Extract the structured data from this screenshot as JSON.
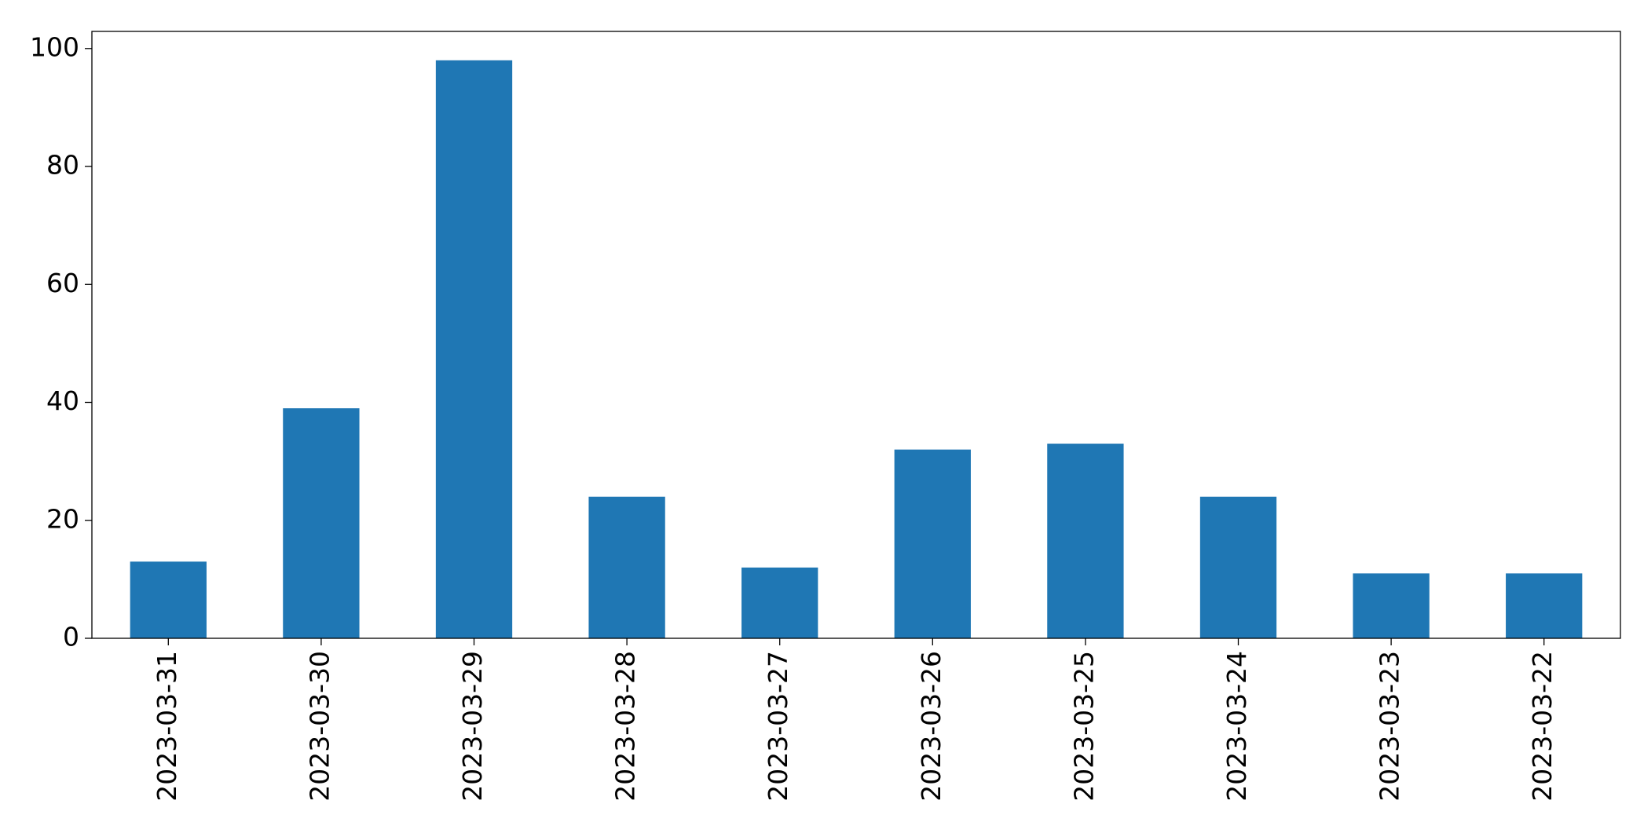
{
  "chart_data": {
    "type": "bar",
    "categories": [
      "2023-03-31",
      "2023-03-30",
      "2023-03-29",
      "2023-03-28",
      "2023-03-27",
      "2023-03-26",
      "2023-03-25",
      "2023-03-24",
      "2023-03-23",
      "2023-03-22"
    ],
    "values": [
      13,
      39,
      98,
      24,
      12,
      32,
      33,
      24,
      11,
      11
    ],
    "color": "#1f77b4",
    "ylim": [
      0,
      102.9
    ],
    "yticks": [
      0,
      20,
      40,
      60,
      80,
      100
    ],
    "grid": false
  }
}
